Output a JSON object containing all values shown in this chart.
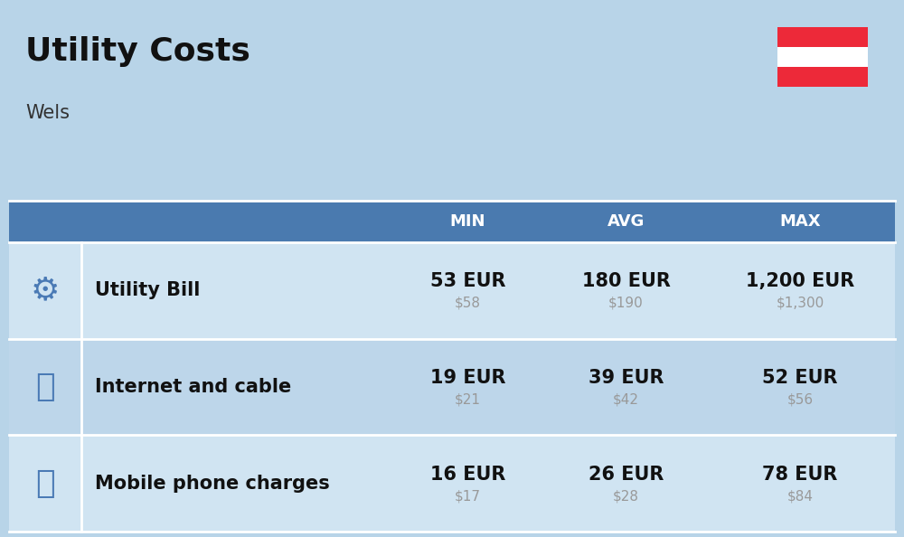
{
  "title": "Utility Costs",
  "subtitle": "Wels",
  "background_color": "#b8d4e8",
  "header_bg_color": "#4a7aaf",
  "header_text_color": "#ffffff",
  "row_bg_color_1": "#d0e4f2",
  "row_bg_color_2": "#bdd6ea",
  "table_border_color": "#ffffff",
  "columns": [
    "MIN",
    "AVG",
    "MAX"
  ],
  "rows": [
    {
      "label": "Utility Bill",
      "min_eur": "53 EUR",
      "min_usd": "$58",
      "avg_eur": "180 EUR",
      "avg_usd": "$190",
      "max_eur": "1,200 EUR",
      "max_usd": "$1,300"
    },
    {
      "label": "Internet and cable",
      "min_eur": "19 EUR",
      "min_usd": "$21",
      "avg_eur": "39 EUR",
      "avg_usd": "$42",
      "max_eur": "52 EUR",
      "max_usd": "$56"
    },
    {
      "label": "Mobile phone charges",
      "min_eur": "16 EUR",
      "min_usd": "$17",
      "avg_eur": "26 EUR",
      "avg_usd": "$28",
      "max_eur": "78 EUR",
      "max_usd": "$84"
    }
  ],
  "flag_colors": [
    "#ed2939",
    "#ffffff",
    "#ed2939"
  ],
  "title_fontsize": 26,
  "subtitle_fontsize": 15,
  "header_fontsize": 13,
  "cell_eur_fontsize": 15,
  "cell_usd_fontsize": 11,
  "label_fontsize": 15,
  "usd_color": "#999999",
  "label_color": "#111111",
  "eur_color": "#111111"
}
